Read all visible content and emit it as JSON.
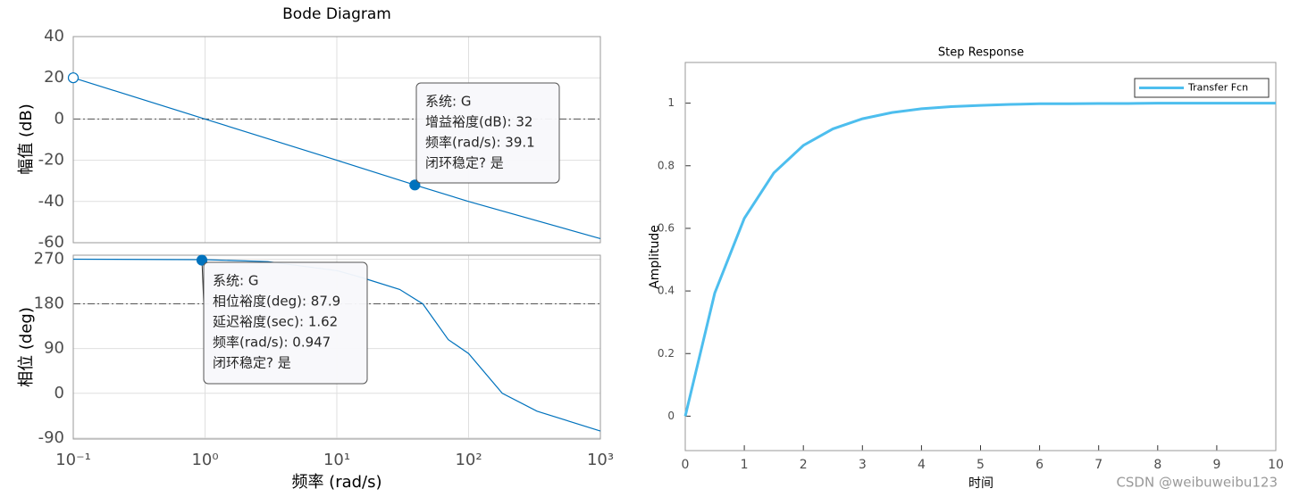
{
  "chart_data": [
    {
      "type": "line",
      "title": "Bode Diagram",
      "ylabel": "幅值 (dB)",
      "xlog": true,
      "xlim": [
        0.1,
        1000
      ],
      "xticks": [
        0.1,
        1,
        10,
        100,
        1000
      ],
      "show_xtick_labels": false,
      "ylim": [
        -60,
        40
      ],
      "yticks": [
        -60,
        -40,
        -20,
        0,
        20,
        40
      ],
      "grid": true,
      "ref_line": 0,
      "x": [
        0.1,
        1,
        10,
        39.1,
        100,
        1000
      ],
      "series": [
        {
          "name": "G",
          "color": "#0072bd",
          "values": [
            20,
            0,
            -20,
            -32,
            -40,
            -58
          ]
        }
      ],
      "markers": [
        {
          "x": 0.1,
          "y": 20,
          "filled": false
        },
        {
          "x": 39.1,
          "y": -32,
          "filled": true
        }
      ],
      "datatip": [
        "系统: G",
        "增益裕度(dB): 32",
        "频率(rad/s): 39.1",
        "闭环稳定? 是"
      ]
    },
    {
      "type": "line",
      "xlabel": "频率  (rad/s)",
      "ylabel": "相位 (deg)",
      "xlog": true,
      "xlim": [
        0.1,
        1000
      ],
      "xticks": [
        {
          "value": 0.1,
          "label": "10⁻¹"
        },
        {
          "value": 1,
          "label": "10⁰"
        },
        {
          "value": 10,
          "label": "10¹"
        },
        {
          "value": 100,
          "label": "10²"
        },
        {
          "value": 1000,
          "label": "10³"
        }
      ],
      "show_xtick_labels": true,
      "ylim": [
        -92,
        278
      ],
      "yticks": [
        -90,
        0,
        90,
        180,
        270
      ],
      "grid": true,
      "ref_line": 180,
      "x": [
        0.1,
        1,
        3,
        10,
        15,
        30,
        45,
        70,
        100,
        180,
        330,
        1000
      ],
      "series": [
        {
          "name": "G",
          "color": "#0072bd",
          "values": [
            270,
            269,
            265,
            247,
            234,
            209,
            180,
            108,
            80,
            0,
            -36,
            -76
          ]
        }
      ],
      "markers": [
        {
          "x": 0.947,
          "y": 267.9,
          "filled": true
        }
      ],
      "datatip": [
        "系统: G",
        "相位裕度(deg): 87.9",
        "延迟裕度(sec): 1.62",
        "频率(rad/s): 0.947",
        "闭环稳定? 是"
      ]
    },
    {
      "type": "line",
      "title": "Step Response",
      "xlabel": "时间",
      "ylabel": "Amplitude",
      "xlog": false,
      "xlim": [
        0,
        10
      ],
      "xticks": [
        0,
        1,
        2,
        3,
        4,
        5,
        6,
        7,
        8,
        9,
        10
      ],
      "show_xtick_labels": true,
      "ylim": [
        -0.11,
        1.13
      ],
      "yticks": [
        0,
        0.2,
        0.4,
        0.6,
        0.8,
        1
      ],
      "grid": false,
      "legend": "northeast",
      "x": [
        0,
        0.5,
        1,
        1.5,
        2,
        2.5,
        3,
        3.5,
        4,
        4.5,
        5,
        5.5,
        6,
        6.5,
        7,
        7.5,
        8,
        8.5,
        9,
        9.5,
        10
      ],
      "series": [
        {
          "name": "Transfer Fcn",
          "color": "#4dbeee",
          "values": [
            0,
            0.393,
            0.632,
            0.777,
            0.865,
            0.918,
            0.95,
            0.97,
            0.982,
            0.989,
            0.993,
            0.996,
            0.998,
            0.998,
            0.999,
            0.999,
            1,
            1,
            1,
            1,
            1
          ]
        }
      ]
    }
  ],
  "watermark": "CSDN @weibuweibu123"
}
